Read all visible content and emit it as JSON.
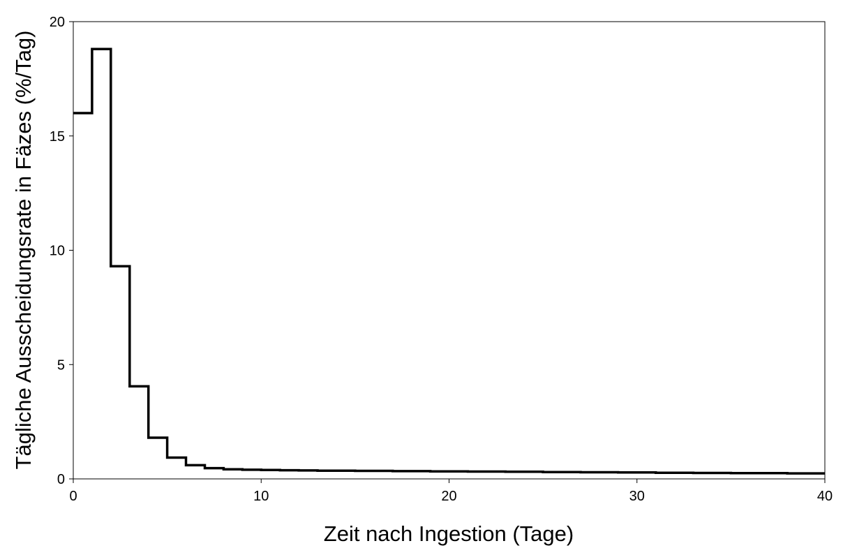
{
  "chart_data": {
    "type": "line",
    "step": true,
    "title": "",
    "xlabel": "Zeit nach Ingestion (Tage)",
    "ylabel": "Tägliche Ausscheidungsrate in Fäzes (%/Tag)",
    "xlim": [
      0,
      40
    ],
    "ylim": [
      0,
      20
    ],
    "xticks": [
      0,
      10,
      20,
      30,
      40
    ],
    "yticks": [
      0,
      5,
      10,
      15,
      20
    ],
    "xtick_labels": [
      "0",
      "10",
      "20",
      "30",
      "40"
    ],
    "ytick_labels": [
      "0",
      "5",
      "10",
      "15",
      "20"
    ],
    "grid": false,
    "legend": false,
    "line_color": "#000000",
    "series": [
      {
        "x": [
          0,
          1,
          2,
          3,
          4,
          5,
          6,
          7,
          8,
          9,
          10,
          11,
          12,
          13,
          14,
          15,
          16,
          17,
          18,
          19,
          20,
          21,
          22,
          23,
          24,
          25,
          26,
          27,
          28,
          29,
          30,
          31,
          32,
          33,
          34,
          35,
          36,
          37,
          38,
          39
        ],
        "values": [
          16.0,
          18.8,
          9.3,
          4.05,
          1.8,
          0.93,
          0.6,
          0.47,
          0.42,
          0.4,
          0.39,
          0.38,
          0.37,
          0.36,
          0.36,
          0.35,
          0.35,
          0.34,
          0.34,
          0.33,
          0.33,
          0.32,
          0.32,
          0.31,
          0.31,
          0.3,
          0.3,
          0.29,
          0.29,
          0.28,
          0.28,
          0.27,
          0.27,
          0.26,
          0.26,
          0.25,
          0.25,
          0.25,
          0.24,
          0.24
        ]
      }
    ]
  }
}
